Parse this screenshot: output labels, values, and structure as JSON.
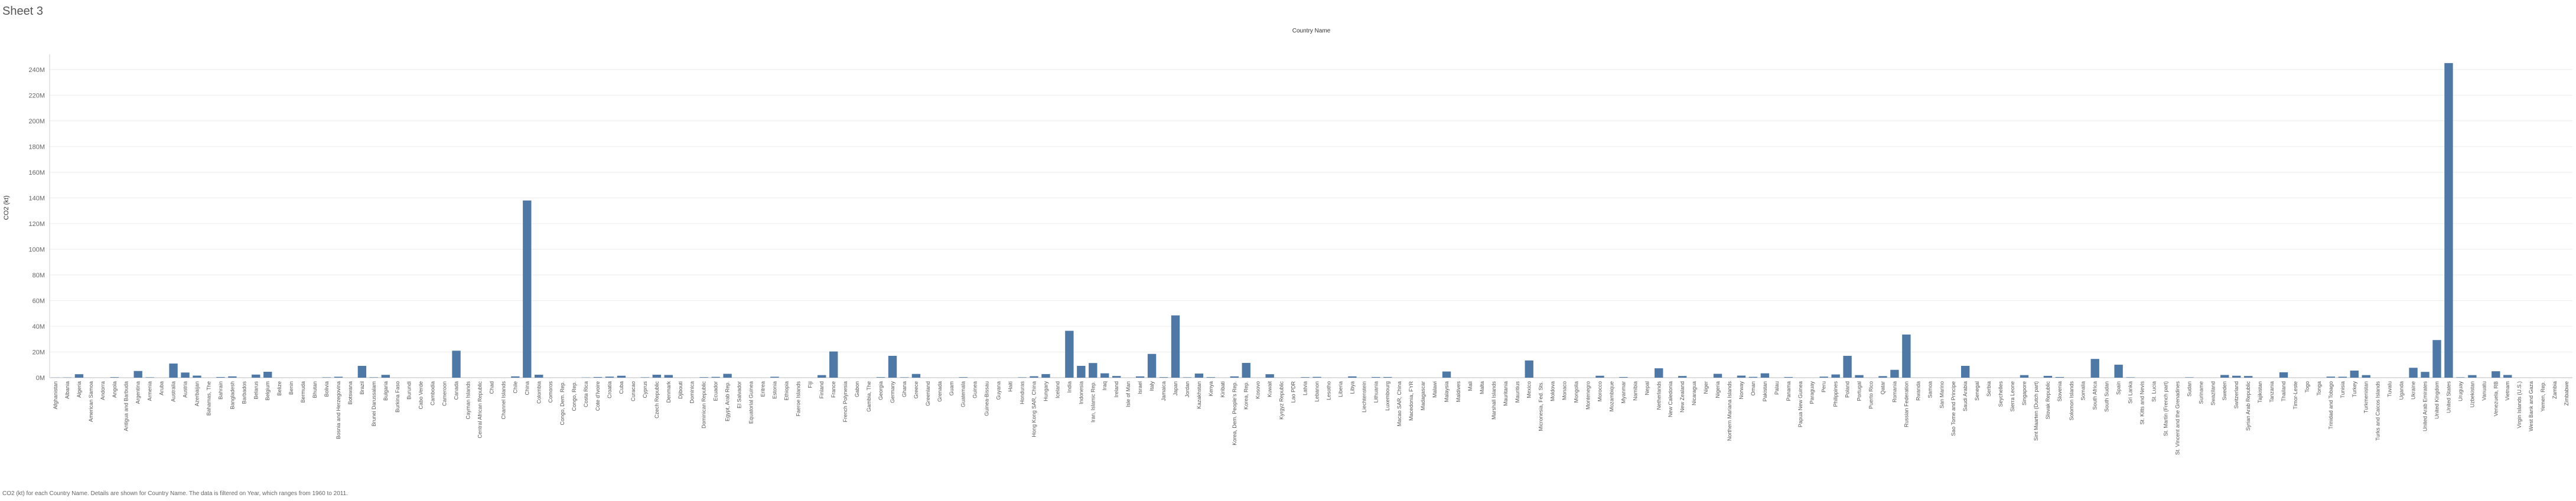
{
  "sheet_title": "Sheet 3",
  "footer_caption": "CO2 (kt) for each Country Name.  Details are shown for Country Name. The data is filtered on Year, which ranges from 1960 to 2011.",
  "colors": {
    "bar": "#4e79a7",
    "grid": "#ececec",
    "axis_text": "#666666",
    "label_text": "#555555"
  },
  "chart_data": {
    "type": "bar",
    "title": "",
    "column_header": "Country Name",
    "xlabel": "",
    "ylabel": "CO2 (kt)",
    "ylim": [
      0,
      250000000
    ],
    "yticks": [
      0,
      20000000,
      40000000,
      60000000,
      80000000,
      100000000,
      120000000,
      140000000,
      160000000,
      180000000,
      200000000,
      220000000,
      240000000
    ],
    "ytick_labels": [
      "0M",
      "20M",
      "40M",
      "60M",
      "80M",
      "100M",
      "120M",
      "140M",
      "160M",
      "180M",
      "200M",
      "220M",
      "240M"
    ],
    "grid": true,
    "categories": [
      "Afghanistan",
      "Albania",
      "Algeria",
      "American Samoa",
      "Andorra",
      "Angola",
      "Antigua and Barbuda",
      "Argentina",
      "Armenia",
      "Aruba",
      "Australia",
      "Austria",
      "Azerbaijan",
      "Bahamas, The",
      "Bahrain",
      "Bangladesh",
      "Barbados",
      "Belarus",
      "Belgium",
      "Belize",
      "Benin",
      "Bermuda",
      "Bhutan",
      "Bolivia",
      "Bosnia and Herzegovina",
      "Botswana",
      "Brazil",
      "Brunei Darussalam",
      "Bulgaria",
      "Burkina Faso",
      "Burundi",
      "Cabo Verde",
      "Cambodia",
      "Cameroon",
      "Canada",
      "Cayman Islands",
      "Central African Republic",
      "Chad",
      "Channel Islands",
      "Chile",
      "China",
      "Colombia",
      "Comoros",
      "Congo, Dem. Rep.",
      "Congo, Rep.",
      "Costa Rica",
      "Cote d'Ivoire",
      "Croatia",
      "Cuba",
      "Curacao",
      "Cyprus",
      "Czech Republic",
      "Denmark",
      "Djibouti",
      "Dominica",
      "Dominican Republic",
      "Ecuador",
      "Egypt, Arab Rep.",
      "El Salvador",
      "Equatorial Guinea",
      "Eritrea",
      "Estonia",
      "Ethiopia",
      "Faeroe Islands",
      "Fiji",
      "Finland",
      "France",
      "French Polynesia",
      "Gabon",
      "Gambia, The",
      "Georgia",
      "Germany",
      "Ghana",
      "Greece",
      "Greenland",
      "Grenada",
      "Guam",
      "Guatemala",
      "Guinea",
      "Guinea-Bissau",
      "Guyana",
      "Haiti",
      "Honduras",
      "Hong Kong SAR, China",
      "Hungary",
      "Iceland",
      "India",
      "Indonesia",
      "Iran, Islamic Rep.",
      "Iraq",
      "Ireland",
      "Isle of Man",
      "Israel",
      "Italy",
      "Jamaica",
      "Japan",
      "Jordan",
      "Kazakhstan",
      "Kenya",
      "Kiribati",
      "Korea, Dem. People's Rep.",
      "Korea, Rep.",
      "Kosovo",
      "Kuwait",
      "Kyrgyz Republic",
      "Lao PDR",
      "Latvia",
      "Lebanon",
      "Lesotho",
      "Liberia",
      "Libya",
      "Liechtenstein",
      "Lithuania",
      "Luxembourg",
      "Macao SAR, China",
      "Macedonia, FYR",
      "Madagascar",
      "Malawi",
      "Malaysia",
      "Maldives",
      "Mali",
      "Malta",
      "Marshall Islands",
      "Mauritania",
      "Mauritius",
      "Mexico",
      "Micronesia, Fed. Sts.",
      "Moldova",
      "Monaco",
      "Mongolia",
      "Montenegro",
      "Morocco",
      "Mozambique",
      "Myanmar",
      "Namibia",
      "Nepal",
      "Netherlands",
      "New Caledonia",
      "New Zealand",
      "Nicaragua",
      "Niger",
      "Nigeria",
      "Northern Mariana Islands",
      "Norway",
      "Oman",
      "Pakistan",
      "Palau",
      "Panama",
      "Papua New Guinea",
      "Paraguay",
      "Peru",
      "Philippines",
      "Poland",
      "Portugal",
      "Puerto Rico",
      "Qatar",
      "Romania",
      "Russian Federation",
      "Rwanda",
      "Samoa",
      "San Marino",
      "Sao Tome and Principe",
      "Saudi Arabia",
      "Senegal",
      "Serbia",
      "Seychelles",
      "Sierra Leone",
      "Singapore",
      "Sint Maarten (Dutch part)",
      "Slovak Republic",
      "Slovenia",
      "Solomon Islands",
      "Somalia",
      "South Africa",
      "South Sudan",
      "Spain",
      "Sri Lanka",
      "St. Kitts and Nevis",
      "St. Lucia",
      "St. Martin (French part)",
      "St. Vincent and the Grenadines",
      "Sudan",
      "Suriname",
      "Swaziland",
      "Sweden",
      "Switzerland",
      "Syrian Arab Republic",
      "Tajikistan",
      "Tanzania",
      "Thailand",
      "Timor-Leste",
      "Togo",
      "Tonga",
      "Trinidad and Tobago",
      "Tunisia",
      "Turkey",
      "Turkmenistan",
      "Turks and Caicos Islands",
      "Tuvalu",
      "Uganda",
      "Ukraine",
      "United Arab Emirates",
      "United Kingdom",
      "United States",
      "Uruguay",
      "Uzbekistan",
      "Vanuatu",
      "Venezuela, RB",
      "Vietnam",
      "Virgin Islands (U.S.)",
      "West Bank and Gaza",
      "Yemen, Rep.",
      "Zambia",
      "Zimbabwe"
    ],
    "values": [
      100000,
      200000,
      2700000,
      0,
      0,
      400000,
      0,
      5200000,
      300000,
      0,
      11000000,
      4000000,
      1600000,
      0,
      500000,
      1000000,
      0,
      2400000,
      4600000,
      0,
      0,
      0,
      0,
      300000,
      700000,
      0,
      9200000,
      300000,
      2200000,
      0,
      0,
      0,
      0,
      0,
      21000000,
      0,
      0,
      0,
      0,
      1000000,
      138000000,
      2300000,
      0,
      0,
      0,
      200000,
      500000,
      800000,
      1500000,
      0,
      300000,
      2300000,
      2100000,
      0,
      0,
      400000,
      600000,
      3000000,
      0,
      0,
      0,
      700000,
      0,
      0,
      0,
      2000000,
      20400000,
      0,
      0,
      0,
      400000,
      17000000,
      300000,
      2900000,
      0,
      0,
      0,
      400000,
      0,
      0,
      0,
      0,
      300000,
      1100000,
      2800000,
      0,
      36500000,
      9200000,
      11400000,
      3400000,
      1300000,
      0,
      1000000,
      18500000,
      400000,
      48500000,
      300000,
      3200000,
      400000,
      0,
      1000000,
      11500000,
      0,
      2700000,
      0,
      0,
      400000,
      600000,
      0,
      0,
      1000000,
      0,
      500000,
      500000,
      0,
      0,
      0,
      0,
      4800000,
      0,
      0,
      0,
      0,
      0,
      0,
      13400000,
      0,
      0,
      0,
      0,
      0,
      1500000,
      0,
      500000,
      0,
      0,
      7300000,
      0,
      1300000,
      0,
      0,
      3000000,
      0,
      1600000,
      600000,
      3400000,
      0,
      500000,
      0,
      0,
      800000,
      2500000,
      17000000,
      2000000,
      0,
      1200000,
      6100000,
      33600000,
      0,
      0,
      0,
      0,
      9200000,
      0,
      0,
      0,
      0,
      2000000,
      0,
      1400000,
      500000,
      0,
      0,
      14600000,
      0,
      10100000,
      300000,
      0,
      0,
      0,
      0,
      300000,
      0,
      0,
      2100000,
      1500000,
      1300000,
      0,
      0,
      4200000,
      0,
      0,
      0,
      800000,
      700000,
      5500000,
      2000000,
      0,
      0,
      0,
      7700000,
      4500000,
      29300000,
      245000000,
      300000,
      2000000,
      0,
      5000000,
      2100000,
      0,
      0,
      0,
      0,
      0
    ]
  }
}
